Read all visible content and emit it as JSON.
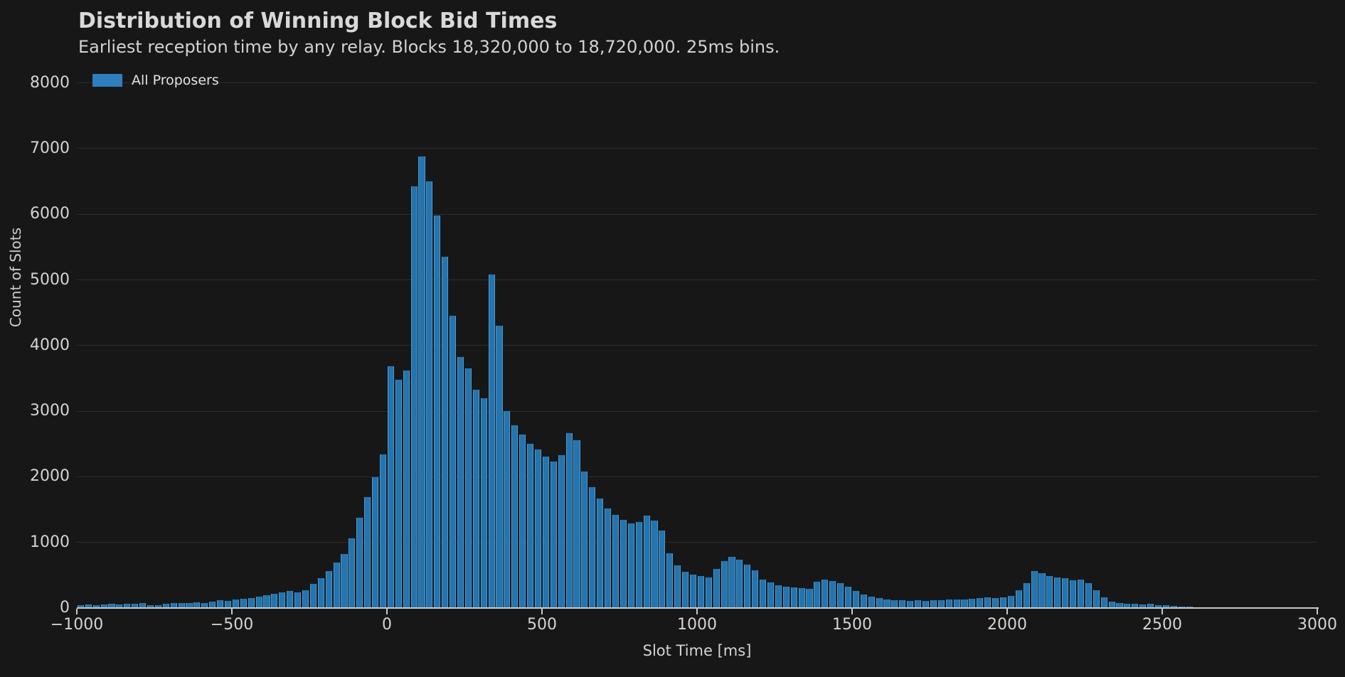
{
  "header": {
    "title": "Distribution of Winning Block Bid Times",
    "subtitle": "Earliest reception time by any relay. Blocks 18,320,000 to 18,720,000. 25ms bins."
  },
  "legend": {
    "label": "All Proposers",
    "swatch_color": "#2f7ebf"
  },
  "chart_data": {
    "type": "bar",
    "title": "Distribution of Winning Block Bid Times",
    "subtitle": "Earliest reception time by any relay. Blocks 18,320,000 to 18,720,000. 25ms bins.",
    "xlabel": "Slot Time [ms]",
    "ylabel": "Count of Slots",
    "legend_position": "upper-left",
    "grid": true,
    "bin_size_ms": 25,
    "x_start": -1000,
    "xlim": [
      -1000,
      3000
    ],
    "ylim": [
      0,
      8230
    ],
    "x_ticks": [
      -1000,
      -500,
      0,
      500,
      1000,
      1500,
      2000,
      2500,
      3000
    ],
    "x_tick_labels": [
      "−1000",
      "−500",
      "0",
      "500",
      "1000",
      "1500",
      "2000",
      "2500",
      "3000"
    ],
    "y_ticks": [
      0,
      1000,
      2000,
      3000,
      4000,
      5000,
      6000,
      7000,
      8000
    ],
    "y_tick_labels": [
      "0",
      "1000",
      "2000",
      "3000",
      "4000",
      "5000",
      "6000",
      "7000",
      "8000"
    ],
    "series": [
      {
        "name": "All Proposers",
        "values": [
          45,
          55,
          46,
          55,
          60,
          55,
          70,
          62,
          75,
          48,
          40,
          60,
          72,
          80,
          72,
          90,
          80,
          100,
          118,
          108,
          125,
          140,
          155,
          175,
          195,
          215,
          240,
          255,
          242,
          270,
          370,
          455,
          565,
          695,
          825,
          1060,
          1380,
          1690,
          1990,
          2340,
          3680,
          3480,
          3620,
          6420,
          6880,
          6500,
          5980,
          5350,
          4450,
          3820,
          3650,
          3330,
          3200,
          5080,
          4300,
          3000,
          2780,
          2640,
          2500,
          2420,
          2310,
          2230,
          2330,
          2660,
          2560,
          2080,
          1840,
          1670,
          1520,
          1420,
          1340,
          1290,
          1310,
          1410,
          1330,
          1180,
          830,
          645,
          550,
          505,
          490,
          470,
          600,
          720,
          775,
          735,
          665,
          575,
          435,
          385,
          345,
          325,
          310,
          298,
          292,
          400,
          435,
          415,
          380,
          325,
          255,
          205,
          168,
          148,
          132,
          122,
          116,
          112,
          116,
          110,
          116,
          122,
          126,
          132,
          126,
          136,
          150,
          160,
          155,
          165,
          185,
          270,
          380,
          560,
          530,
          490,
          470,
          460,
          420,
          435,
          380,
          270,
          160,
          95,
          78,
          70,
          62,
          56,
          60,
          48,
          40,
          30,
          24,
          20,
          16,
          13,
          11,
          9,
          8,
          7,
          6,
          5,
          5,
          4,
          4,
          3,
          3,
          2,
          2,
          2
        ]
      }
    ],
    "colors": {
      "bar_fill": "#2474ae",
      "bar_edge": "#4f97cd",
      "background": "#171717",
      "grid": "#2c2c2c",
      "axis": "#c9c9c9",
      "text": "#d4d4d4"
    }
  }
}
